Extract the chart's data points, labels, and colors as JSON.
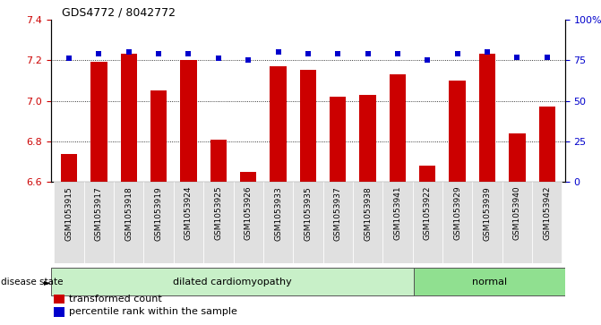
{
  "title": "GDS4772 / 8042772",
  "samples": [
    "GSM1053915",
    "GSM1053917",
    "GSM1053918",
    "GSM1053919",
    "GSM1053924",
    "GSM1053925",
    "GSM1053926",
    "GSM1053933",
    "GSM1053935",
    "GSM1053937",
    "GSM1053938",
    "GSM1053941",
    "GSM1053922",
    "GSM1053929",
    "GSM1053939",
    "GSM1053940",
    "GSM1053942"
  ],
  "bar_values": [
    6.74,
    7.19,
    7.23,
    7.05,
    7.2,
    6.81,
    6.65,
    7.17,
    7.15,
    7.02,
    7.03,
    7.13,
    6.68,
    7.1,
    7.23,
    6.84,
    6.97
  ],
  "percentile_values": [
    76,
    79,
    80,
    79,
    79,
    76,
    75,
    80,
    79,
    79,
    79,
    79,
    75,
    79,
    80,
    77,
    77
  ],
  "disease_groups": [
    {
      "label": "dilated cardiomyopathy",
      "start": 0,
      "end": 12,
      "color": "#c8f0c8"
    },
    {
      "label": "normal",
      "start": 12,
      "end": 17,
      "color": "#90e090"
    }
  ],
  "bar_color": "#cc0000",
  "percentile_color": "#0000cc",
  "left_ylim": [
    6.6,
    7.4
  ],
  "right_ylim": [
    0,
    100
  ],
  "left_yticks": [
    6.6,
    6.8,
    7.0,
    7.2,
    7.4
  ],
  "right_yticks": [
    0,
    25,
    50,
    75,
    100
  ],
  "right_yticklabels": [
    "0",
    "25",
    "50",
    "75",
    "100%"
  ],
  "grid_lines": [
    6.8,
    7.0,
    7.2
  ],
  "legend_items": [
    {
      "label": "transformed count",
      "color": "#cc0000"
    },
    {
      "label": "percentile rank within the sample",
      "color": "#0000cc"
    }
  ],
  "disease_state_label": "disease state",
  "sample_bg_color": "#e0e0e0"
}
